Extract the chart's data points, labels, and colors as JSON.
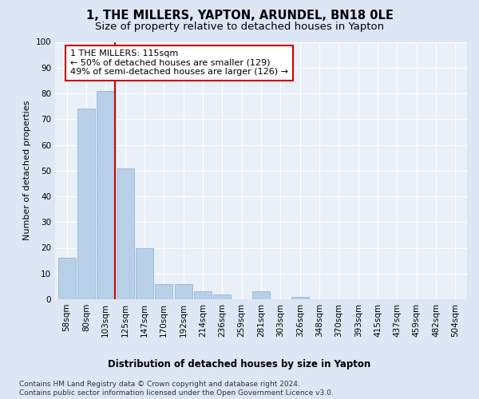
{
  "title": "1, THE MILLERS, YAPTON, ARUNDEL, BN18 0LE",
  "subtitle": "Size of property relative to detached houses in Yapton",
  "xlabel": "Distribution of detached houses by size in Yapton",
  "ylabel": "Number of detached properties",
  "categories": [
    "58sqm",
    "80sqm",
    "103sqm",
    "125sqm",
    "147sqm",
    "170sqm",
    "192sqm",
    "214sqm",
    "236sqm",
    "259sqm",
    "281sqm",
    "303sqm",
    "326sqm",
    "348sqm",
    "370sqm",
    "393sqm",
    "415sqm",
    "437sqm",
    "459sqm",
    "482sqm",
    "504sqm"
  ],
  "values": [
    16,
    74,
    81,
    51,
    20,
    6,
    6,
    3,
    2,
    0,
    3,
    0,
    1,
    0,
    0,
    0,
    0,
    0,
    0,
    0,
    0
  ],
  "bar_color": "#b8cfe8",
  "bar_edge_color": "#8aaed4",
  "red_line_x": 2.5,
  "annotation_text": "1 THE MILLERS: 115sqm\n← 50% of detached houses are smaller (129)\n49% of semi-detached houses are larger (126) →",
  "annotation_box_color": "#ffffff",
  "annotation_box_edge": "#cc0000",
  "red_line_color": "#cc0000",
  "ylim": [
    0,
    100
  ],
  "yticks": [
    0,
    10,
    20,
    30,
    40,
    50,
    60,
    70,
    80,
    90,
    100
  ],
  "footer_line1": "Contains HM Land Registry data © Crown copyright and database right 2024.",
  "footer_line2": "Contains public sector information licensed under the Open Government Licence v3.0.",
  "bg_color": "#dce6f5",
  "plot_bg_color": "#eaf0f8",
  "title_fontsize": 10.5,
  "subtitle_fontsize": 9.5,
  "xlabel_fontsize": 8.5,
  "ylabel_fontsize": 8,
  "tick_fontsize": 7.5,
  "annotation_fontsize": 8,
  "footer_fontsize": 6.5
}
